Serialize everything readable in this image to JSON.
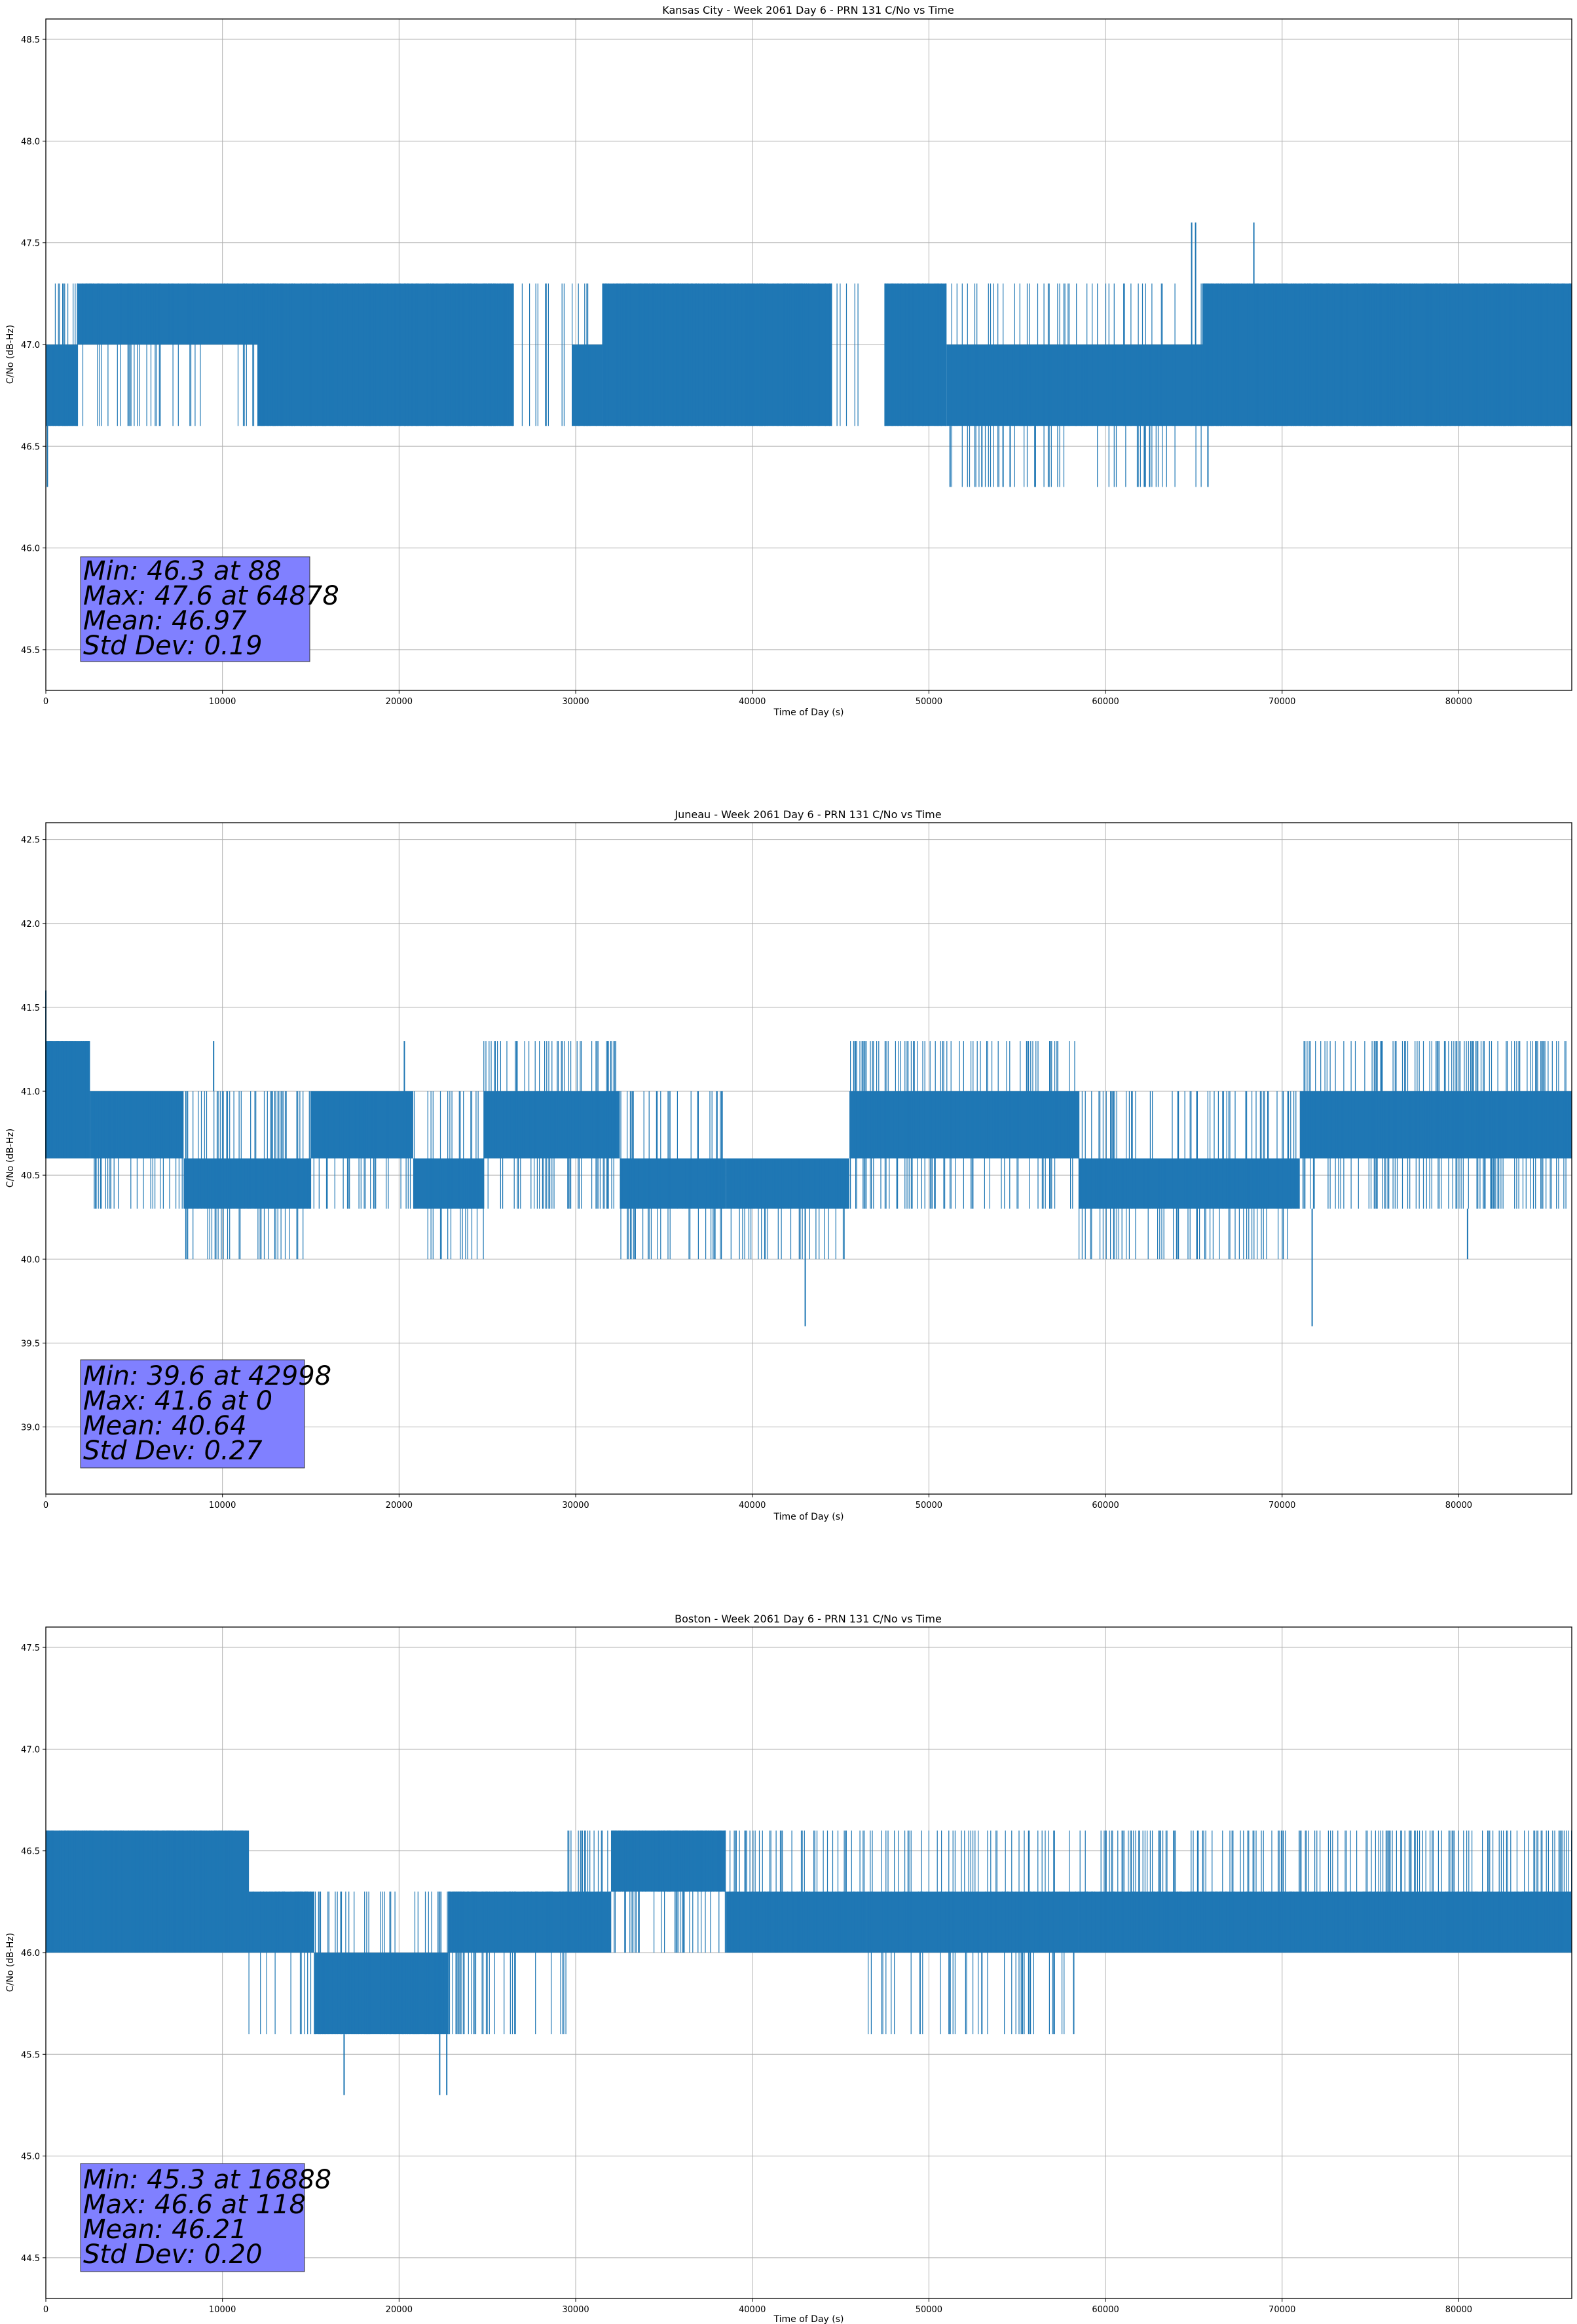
{
  "chart_data": [
    {
      "type": "line",
      "title": "Kansas City - Week 2061 Day 6 - PRN 131 C/No vs Time",
      "xlabel": "Time of Day (s)",
      "ylabel": "C/No (dB-Hz)",
      "xlim": [
        0,
        86400
      ],
      "ylim": [
        45.3,
        48.6
      ],
      "xticks": [
        0,
        10000,
        20000,
        30000,
        40000,
        50000,
        60000,
        70000,
        80000
      ],
      "xtick_labels": [
        "0",
        "10000",
        "20000",
        "30000",
        "40000",
        "50000",
        "60000",
        "70000",
        "80000"
      ],
      "yticks": [
        45.5,
        46.0,
        46.5,
        47.0,
        47.5,
        48.0,
        48.5
      ],
      "ytick_labels": [
        "45.5",
        "46.0",
        "46.5",
        "47.0",
        "47.5",
        "48.0",
        "48.5"
      ],
      "grid": true,
      "series_color": "#1f77b4",
      "segments": [
        {
          "x0": 0,
          "x1": 1800,
          "base": [
            46.6,
            47.0
          ],
          "upper": 47.3,
          "lower": 46.6,
          "density": 0.55
        },
        {
          "x0": 1800,
          "x1": 7500,
          "base": [
            47.0,
            47.3
          ],
          "upper": 47.3,
          "lower": 46.6,
          "density": 0.45
        },
        {
          "x0": 7500,
          "x1": 12000,
          "base": [
            47.0,
            47.3
          ],
          "upper": 47.3,
          "lower": 46.6,
          "density": 0.25
        },
        {
          "x0": 12000,
          "x1": 26500,
          "base": [
            46.6,
            47.3
          ],
          "upper": 47.3,
          "lower": 46.6,
          "density": 0.5
        },
        {
          "x0": 26500,
          "x1": 29800,
          "base": null,
          "upper": 47.3,
          "lower": 46.6,
          "density": 0.12
        },
        {
          "x0": 29800,
          "x1": 31500,
          "base": [
            46.6,
            47.0
          ],
          "upper": 47.3,
          "lower": 46.6,
          "density": 0.4
        },
        {
          "x0": 31500,
          "x1": 44500,
          "base": [
            46.6,
            47.3
          ],
          "upper": 47.3,
          "lower": 46.6,
          "density": 0.5
        },
        {
          "x0": 44500,
          "x1": 47500,
          "base": null,
          "upper": 47.3,
          "lower": 46.6,
          "density": 0.15
        },
        {
          "x0": 47500,
          "x1": 51000,
          "base": [
            46.6,
            47.3
          ],
          "upper": 47.3,
          "lower": 46.6,
          "density": 0.35
        },
        {
          "x0": 51000,
          "x1": 65500,
          "base": [
            46.6,
            47.0
          ],
          "upper": 47.3,
          "lower": 46.3,
          "density": 0.35
        },
        {
          "x0": 65500,
          "x1": 86400,
          "base": [
            46.6,
            47.3
          ],
          "upper": 47.3,
          "lower": 46.6,
          "density": 0.55
        }
      ],
      "spikes": [
        {
          "x": 88,
          "lo": 46.3,
          "hi": 47.0
        },
        {
          "x": 51200,
          "lo": 46.3,
          "hi": 46.6
        },
        {
          "x": 53000,
          "lo": 46.3,
          "hi": 46.6
        },
        {
          "x": 54200,
          "lo": 46.3,
          "hi": 46.6
        },
        {
          "x": 54600,
          "lo": 46.3,
          "hi": 46.6
        },
        {
          "x": 56000,
          "lo": 46.3,
          "hi": 46.6
        },
        {
          "x": 62200,
          "lo": 46.3,
          "hi": 46.6
        },
        {
          "x": 62500,
          "lo": 46.3,
          "hi": 46.6
        },
        {
          "x": 65800,
          "lo": 46.3,
          "hi": 46.6
        },
        {
          "x": 64878,
          "lo": 47.0,
          "hi": 47.6
        },
        {
          "x": 65100,
          "lo": 47.0,
          "hi": 47.6
        },
        {
          "x": 68400,
          "lo": 47.0,
          "hi": 47.6
        }
      ],
      "stats": {
        "min_line": "Min: 46.3 at 88",
        "max_line": "Max: 47.6 at 64878",
        "mean_line": "Mean: 46.97",
        "std_line": "Std Dev: 0.19"
      },
      "stats_box_color": "#8080ff"
    },
    {
      "type": "line",
      "title": "Juneau - Week 2061 Day 6 - PRN 131 C/No vs Time",
      "xlabel": "Time of Day (s)",
      "ylabel": "C/No (dB-Hz)",
      "xlim": [
        0,
        86400
      ],
      "ylim": [
        38.6,
        42.6
      ],
      "xticks": [
        0,
        10000,
        20000,
        30000,
        40000,
        50000,
        60000,
        70000,
        80000
      ],
      "xtick_labels": [
        "0",
        "10000",
        "20000",
        "30000",
        "40000",
        "50000",
        "60000",
        "70000",
        "80000"
      ],
      "yticks": [
        39.0,
        39.5,
        40.0,
        40.5,
        41.0,
        41.5,
        42.0,
        42.5
      ],
      "ytick_labels": [
        "39.0",
        "39.5",
        "40.0",
        "40.5",
        "41.0",
        "41.5",
        "42.0",
        "42.5"
      ],
      "grid": true,
      "series_color": "#1f77b4",
      "segments": [
        {
          "x0": 0,
          "x1": 2500,
          "base": [
            40.6,
            41.3
          ],
          "upper": 41.3,
          "lower": 40.6,
          "density": 0.6
        },
        {
          "x0": 2500,
          "x1": 7800,
          "base": [
            40.6,
            41.0
          ],
          "upper": 41.0,
          "lower": 40.3,
          "density": 0.5
        },
        {
          "x0": 7800,
          "x1": 15000,
          "base": [
            40.3,
            40.6
          ],
          "upper": 41.0,
          "lower": 40.0,
          "density": 0.5
        },
        {
          "x0": 15000,
          "x1": 20800,
          "base": [
            40.6,
            41.0
          ],
          "upper": 41.0,
          "lower": 40.3,
          "density": 0.5
        },
        {
          "x0": 20800,
          "x1": 24800,
          "base": [
            40.3,
            40.6
          ],
          "upper": 41.0,
          "lower": 40.0,
          "density": 0.5
        },
        {
          "x0": 24800,
          "x1": 32500,
          "base": [
            40.6,
            41.0
          ],
          "upper": 41.3,
          "lower": 40.3,
          "density": 0.55
        },
        {
          "x0": 32500,
          "x1": 38500,
          "base": [
            40.3,
            40.6
          ],
          "upper": 41.0,
          "lower": 40.0,
          "density": 0.5
        },
        {
          "x0": 38500,
          "x1": 45500,
          "base": [
            40.3,
            40.6
          ],
          "upper": 40.6,
          "lower": 40.0,
          "density": 0.4
        },
        {
          "x0": 45500,
          "x1": 58500,
          "base": [
            40.6,
            41.0
          ],
          "upper": 41.3,
          "lower": 40.3,
          "density": 0.5
        },
        {
          "x0": 58500,
          "x1": 71000,
          "base": [
            40.3,
            40.6
          ],
          "upper": 41.0,
          "lower": 40.0,
          "density": 0.5
        },
        {
          "x0": 71000,
          "x1": 86400,
          "base": [
            40.6,
            41.0
          ],
          "upper": 41.3,
          "lower": 40.3,
          "density": 0.6
        }
      ],
      "spikes": [
        {
          "x": 0,
          "lo": 40.6,
          "hi": 41.6
        },
        {
          "x": 42998,
          "lo": 39.6,
          "hi": 40.3
        },
        {
          "x": 71700,
          "lo": 39.6,
          "hi": 40.3
        },
        {
          "x": 9500,
          "lo": 41.0,
          "hi": 41.3
        },
        {
          "x": 20300,
          "lo": 41.0,
          "hi": 41.3
        },
        {
          "x": 80500,
          "lo": 40.0,
          "hi": 40.3
        }
      ],
      "stats": {
        "min_line": "Min: 39.6 at 42998",
        "max_line": "Max: 41.6 at 0",
        "mean_line": "Mean: 40.64",
        "std_line": "Std Dev: 0.27"
      },
      "stats_box_color": "#8080ff"
    },
    {
      "type": "line",
      "title": "Boston - Week 2061 Day 6 - PRN 131 C/No vs Time",
      "xlabel": "Time of Day (s)",
      "ylabel": "C/No (dB-Hz)",
      "xlim": [
        0,
        86400
      ],
      "ylim": [
        44.3,
        47.6
      ],
      "xticks": [
        0,
        10000,
        20000,
        30000,
        40000,
        50000,
        60000,
        70000,
        80000
      ],
      "xtick_labels": [
        "0",
        "10000",
        "20000",
        "30000",
        "40000",
        "50000",
        "60000",
        "70000",
        "80000"
      ],
      "yticks": [
        44.5,
        45.0,
        45.5,
        46.0,
        46.5,
        47.0,
        47.5
      ],
      "ytick_labels": [
        "44.5",
        "45.0",
        "45.5",
        "46.0",
        "46.5",
        "47.0",
        "47.5"
      ],
      "grid": true,
      "series_color": "#1f77b4",
      "segments": [
        {
          "x0": 0,
          "x1": 11500,
          "base": [
            46.0,
            46.6
          ],
          "upper": 46.6,
          "lower": 46.0,
          "density": 0.55
        },
        {
          "x0": 11500,
          "x1": 15200,
          "base": [
            46.0,
            46.3
          ],
          "upper": 46.3,
          "lower": 45.6,
          "density": 0.45
        },
        {
          "x0": 15200,
          "x1": 22800,
          "base": [
            45.6,
            46.0
          ],
          "upper": 46.3,
          "lower": 45.6,
          "density": 0.5
        },
        {
          "x0": 22800,
          "x1": 29500,
          "base": [
            46.0,
            46.3
          ],
          "upper": 46.3,
          "lower": 45.6,
          "density": 0.45
        },
        {
          "x0": 29500,
          "x1": 32000,
          "base": [
            46.0,
            46.3
          ],
          "upper": 46.6,
          "lower": 46.0,
          "density": 0.45
        },
        {
          "x0": 32000,
          "x1": 38500,
          "base": [
            46.3,
            46.6
          ],
          "upper": 46.6,
          "lower": 46.0,
          "density": 0.5
        },
        {
          "x0": 38500,
          "x1": 46500,
          "base": [
            46.0,
            46.3
          ],
          "upper": 46.6,
          "lower": 46.0,
          "density": 0.5
        },
        {
          "x0": 46500,
          "x1": 58500,
          "base": [
            46.0,
            46.3
          ],
          "upper": 46.6,
          "lower": 45.6,
          "density": 0.45
        },
        {
          "x0": 58500,
          "x1": 86400,
          "base": [
            46.0,
            46.3
          ],
          "upper": 46.6,
          "lower": 46.0,
          "density": 0.55
        }
      ],
      "spikes": [
        {
          "x": 16888,
          "lo": 45.3,
          "hi": 45.6
        },
        {
          "x": 22300,
          "lo": 45.3,
          "hi": 45.6
        },
        {
          "x": 22700,
          "lo": 45.3,
          "hi": 45.6
        },
        {
          "x": 118,
          "lo": 46.0,
          "hi": 46.6
        },
        {
          "x": 49500,
          "lo": 45.6,
          "hi": 46.0
        },
        {
          "x": 51200,
          "lo": 45.6,
          "hi": 46.0
        },
        {
          "x": 53000,
          "lo": 45.6,
          "hi": 46.0
        },
        {
          "x": 55300,
          "lo": 45.6,
          "hi": 46.0
        },
        {
          "x": 58200,
          "lo": 45.6,
          "hi": 46.0
        }
      ],
      "stats": {
        "min_line": "Min: 45.3 at 16888",
        "max_line": "Max: 46.6 at 118",
        "mean_line": "Mean: 46.21",
        "std_line": "Std Dev: 0.20"
      },
      "stats_box_color": "#8080ff"
    }
  ]
}
